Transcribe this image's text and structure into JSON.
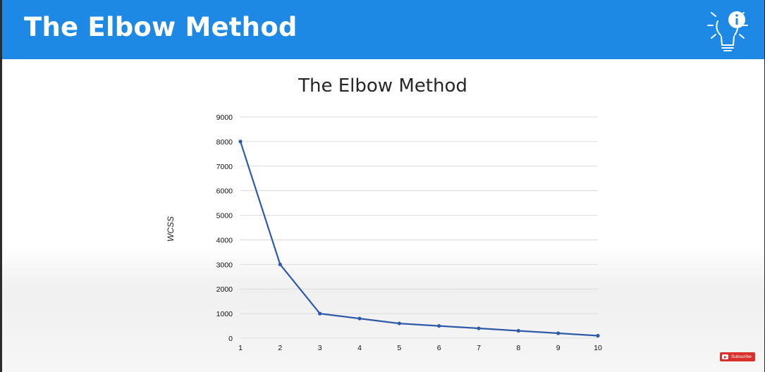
{
  "header": {
    "title": "The Elbow Method",
    "icon": "lightbulb-info-icon"
  },
  "badge": {
    "label": "Subscribe",
    "icon": "youtube-play-icon",
    "color": "#d9302b"
  },
  "colors": {
    "header_bg": "#1e88e5",
    "series": "#2f5aa8"
  },
  "chart_data": {
    "type": "line",
    "title": "The Elbow Method",
    "xlabel": "",
    "ylabel": "WCSS",
    "x": [
      1,
      2,
      3,
      4,
      5,
      6,
      7,
      8,
      9,
      10
    ],
    "y_ticks": [
      0,
      1000,
      2000,
      3000,
      4000,
      5000,
      6000,
      7000,
      8000,
      9000
    ],
    "series": [
      {
        "values": [
          8000,
          3000,
          1000,
          800,
          600,
          500,
          400,
          300,
          200,
          100
        ]
      }
    ],
    "xlim": [
      1,
      10
    ],
    "ylim": [
      0,
      9000
    ],
    "grid": true,
    "legend": "none"
  }
}
